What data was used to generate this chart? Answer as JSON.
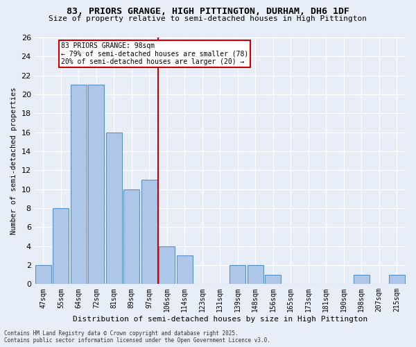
{
  "title": "83, PRIORS GRANGE, HIGH PITTINGTON, DURHAM, DH6 1DF",
  "subtitle": "Size of property relative to semi-detached houses in High Pittington",
  "xlabel": "Distribution of semi-detached houses by size in High Pittington",
  "ylabel": "Number of semi-detached properties",
  "categories": [
    "47sqm",
    "55sqm",
    "64sqm",
    "72sqm",
    "81sqm",
    "89sqm",
    "97sqm",
    "106sqm",
    "114sqm",
    "123sqm",
    "131sqm",
    "139sqm",
    "148sqm",
    "156sqm",
    "165sqm",
    "173sqm",
    "181sqm",
    "190sqm",
    "198sqm",
    "207sqm",
    "215sqm"
  ],
  "values": [
    2,
    8,
    21,
    21,
    16,
    10,
    11,
    4,
    3,
    0,
    0,
    2,
    2,
    1,
    0,
    0,
    0,
    0,
    1,
    0,
    1
  ],
  "bar_color": "#aec6e8",
  "bar_edge_color": "#5a8fc2",
  "highlight_index": 6,
  "highlight_color": "#cc0000",
  "ylim": [
    0,
    26
  ],
  "yticks": [
    0,
    2,
    4,
    6,
    8,
    10,
    12,
    14,
    16,
    18,
    20,
    22,
    24,
    26
  ],
  "annotation_title": "83 PRIORS GRANGE: 98sqm",
  "annotation_line1": "← 79% of semi-detached houses are smaller (78)",
  "annotation_line2": "20% of semi-detached houses are larger (20) →",
  "annotation_box_color": "#cc0000",
  "footer_line1": "Contains HM Land Registry data © Crown copyright and database right 2025.",
  "footer_line2": "Contains public sector information licensed under the Open Government Licence v3.0.",
  "background_color": "#e8eef7",
  "plot_background": "#e8eef7",
  "grid_color": "#ffffff"
}
